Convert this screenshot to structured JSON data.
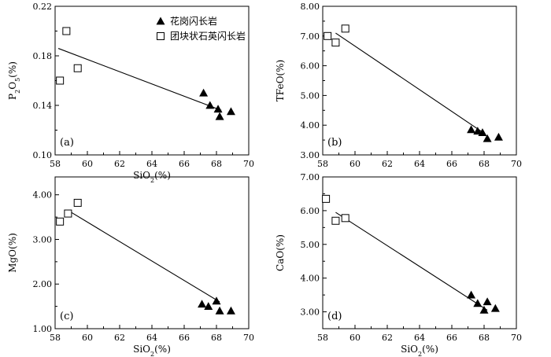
{
  "legend": {
    "granodiorite": "花岗闪长岩",
    "enclave": "团块状石英闪长岩"
  },
  "chart_data": [
    {
      "type": "scatter",
      "panel": "(a)",
      "xlabel": "SiO2(%)",
      "ylabel": "P2O5(%)",
      "xlim": [
        58,
        70
      ],
      "ylim": [
        0.1,
        0.22
      ],
      "xticks": [
        "58",
        "60",
        "62",
        "64",
        "66",
        "68",
        "70"
      ],
      "yticks": [
        {
          "v": 0.1,
          "label": "0.10"
        },
        {
          "v": 0.14,
          "label": "0.14"
        },
        {
          "v": 0.18,
          "label": "0.18"
        },
        {
          "v": 0.22,
          "label": "0.22"
        }
      ],
      "series": [
        {
          "name": "花岗闪长岩",
          "marker": "triangle",
          "points": [
            [
              67.2,
              0.15
            ],
            [
              67.6,
              0.14
            ],
            [
              68.1,
              0.137
            ],
            [
              68.2,
              0.131
            ],
            [
              68.9,
              0.135
            ]
          ]
        },
        {
          "name": "团块状石英闪长岩",
          "marker": "square",
          "points": [
            [
              58.3,
              0.16
            ],
            [
              58.7,
              0.2
            ],
            [
              59.4,
              0.17
            ]
          ]
        }
      ],
      "trend": [
        [
          58.2,
          0.186
        ],
        [
          68.3,
          0.136
        ]
      ],
      "show_legend": true
    },
    {
      "type": "scatter",
      "panel": "(b)",
      "xlabel": "",
      "ylabel": "TFeO(%)",
      "xlim": [
        58,
        70
      ],
      "ylim": [
        3.0,
        8.0
      ],
      "xticks": [
        "58",
        "60",
        "62",
        "64",
        "66",
        "68",
        "70"
      ],
      "yticks": [
        {
          "v": 3,
          "label": "3.00"
        },
        {
          "v": 4,
          "label": "4.00"
        },
        {
          "v": 5,
          "label": "5.00"
        },
        {
          "v": 6,
          "label": "6.00"
        },
        {
          "v": 7,
          "label": "7.00"
        },
        {
          "v": 8,
          "label": "8.00"
        }
      ],
      "series": [
        {
          "name": "花岗闪长岩",
          "marker": "triangle",
          "points": [
            [
              67.2,
              3.85
            ],
            [
              67.6,
              3.8
            ],
            [
              67.9,
              3.75
            ],
            [
              68.2,
              3.55
            ],
            [
              68.9,
              3.6
            ]
          ]
        },
        {
          "name": "团块状石英闪长岩",
          "marker": "square",
          "points": [
            [
              58.3,
              7.0
            ],
            [
              58.8,
              6.78
            ],
            [
              59.4,
              7.25
            ]
          ]
        }
      ],
      "trend": [
        [
          58.8,
          7.1
        ],
        [
          68.0,
          3.73
        ]
      ],
      "show_legend": false
    },
    {
      "type": "scatter",
      "panel": "(c)",
      "xlabel": "SiO2(%)",
      "ylabel": "MgO(%)",
      "xlim": [
        58,
        70
      ],
      "ylim": [
        1.0,
        4.4
      ],
      "xticks": [
        "58",
        "60",
        "62",
        "64",
        "66",
        "68",
        "70"
      ],
      "yticks": [
        {
          "v": 1,
          "label": "1.00"
        },
        {
          "v": 2,
          "label": "2.00"
        },
        {
          "v": 3,
          "label": "3.00"
        },
        {
          "v": 4,
          "label": "4.00"
        }
      ],
      "series": [
        {
          "name": "花岗闪长岩",
          "marker": "triangle",
          "points": [
            [
              67.1,
              1.55
            ],
            [
              67.5,
              1.5
            ],
            [
              68.0,
              1.62
            ],
            [
              68.2,
              1.4
            ],
            [
              68.9,
              1.4
            ]
          ]
        },
        {
          "name": "团块状石英闪长岩",
          "marker": "square",
          "points": [
            [
              58.3,
              3.4
            ],
            [
              58.8,
              3.58
            ],
            [
              59.4,
              3.82
            ]
          ]
        }
      ],
      "trend": [
        [
          58.8,
          3.65
        ],
        [
          68.2,
          1.6
        ]
      ],
      "show_legend": false
    },
    {
      "type": "scatter",
      "panel": "(d)",
      "xlabel": "SiO2(%)",
      "ylabel": "CaO(%)",
      "xlim": [
        58,
        70
      ],
      "ylim": [
        2.5,
        7.0
      ],
      "xticks": [
        "58",
        "60",
        "62",
        "64",
        "66",
        "68",
        "70"
      ],
      "yticks": [
        {
          "v": 3,
          "label": "3.00"
        },
        {
          "v": 4,
          "label": "4.00"
        },
        {
          "v": 5,
          "label": "5.00"
        },
        {
          "v": 6,
          "label": "6.00"
        },
        {
          "v": 7,
          "label": "7.00"
        }
      ],
      "series": [
        {
          "name": "花岗闪长岩",
          "marker": "triangle",
          "points": [
            [
              67.2,
              3.5
            ],
            [
              67.6,
              3.25
            ],
            [
              68.0,
              3.05
            ],
            [
              68.2,
              3.3
            ],
            [
              68.7,
              3.1
            ]
          ]
        },
        {
          "name": "团块状石英闪长岩",
          "marker": "square",
          "points": [
            [
              58.2,
              6.35
            ],
            [
              58.8,
              5.7
            ],
            [
              59.4,
              5.78
            ]
          ]
        }
      ],
      "trend": [
        [
          58.8,
          5.95
        ],
        [
          68.2,
          3.05
        ]
      ],
      "show_legend": false
    }
  ]
}
